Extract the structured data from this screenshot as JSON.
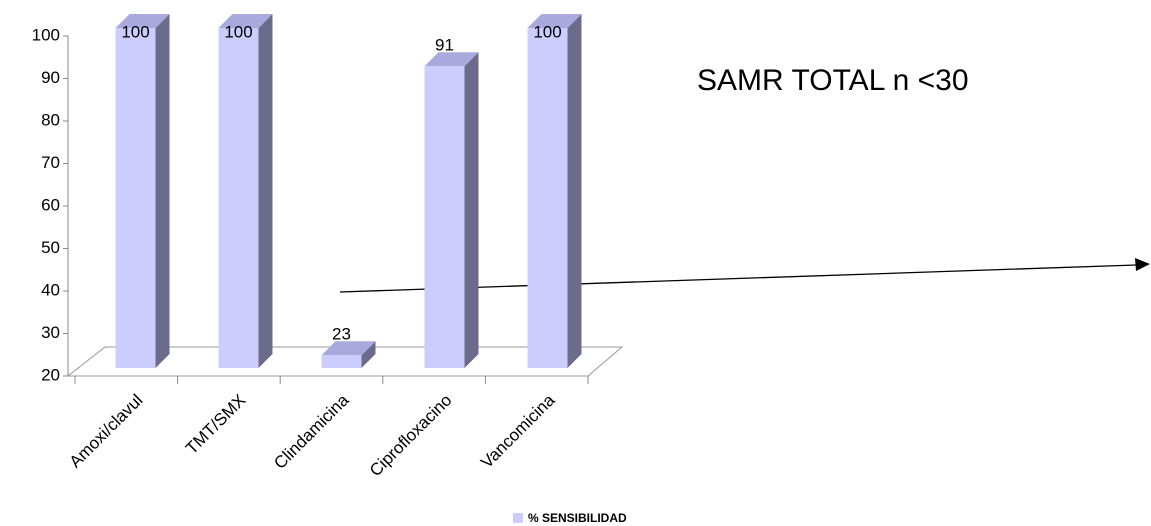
{
  "chart_data": {
    "type": "bar3d",
    "annotation": "SAMR  TOTAL  n <30",
    "categories": [
      "Amoxi/clavul",
      "TMT/SMX",
      "Clindamicina",
      "Ciprofloxacino",
      "Vancomicina"
    ],
    "series": [
      {
        "name": "% SENSIBILIDAD",
        "color": "#ccccff",
        "values": [
          100,
          100,
          23,
          91,
          100
        ]
      }
    ],
    "ylim": [
      20,
      100
    ],
    "yticks": [
      20,
      30,
      40,
      50,
      60,
      70,
      80,
      90,
      100
    ]
  }
}
